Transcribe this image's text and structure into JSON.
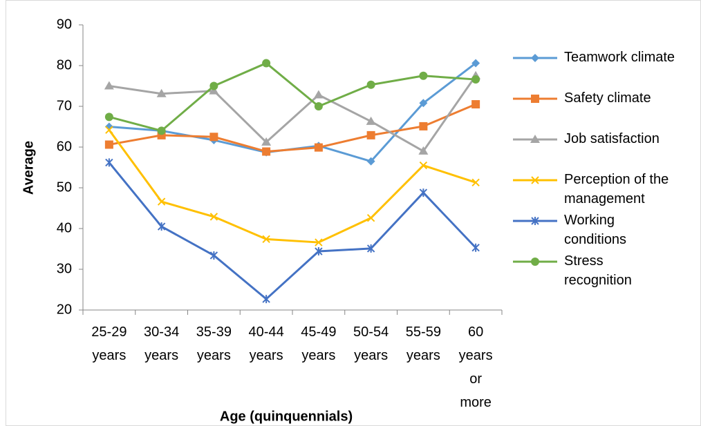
{
  "chart_data": {
    "type": "line",
    "x_label": "Age (quinquennials)",
    "y_label": "Average",
    "categories": [
      "25-29 years",
      "30-34 years",
      "35-39 years",
      "40-44 years",
      "45-49 years",
      "50-54 years",
      "55-59 years",
      "60 years or more"
    ],
    "ylim": [
      20,
      90
    ],
    "yticks": [
      20,
      30,
      40,
      50,
      60,
      70,
      80,
      90
    ],
    "grid": false,
    "legend": "right",
    "series": [
      {
        "name": "Teamwork climate",
        "color": "#5b9bd5",
        "marker": "diamond",
        "values": [
          65,
          64,
          61.7,
          58.7,
          60.3,
          56.5,
          70.8,
          80.6
        ]
      },
      {
        "name": "Safety climate",
        "color": "#ed7d31",
        "marker": "square",
        "values": [
          60.6,
          62.9,
          62.5,
          58.9,
          59.9,
          62.9,
          65.1,
          70.5
        ]
      },
      {
        "name": "Job satisfaction",
        "color": "#a5a5a5",
        "marker": "triangle",
        "values": [
          75,
          73.1,
          73.8,
          61.2,
          72.8,
          66.3,
          59,
          77.5
        ]
      },
      {
        "name": "Perception of the management",
        "color": "#ffc000",
        "marker": "x",
        "values": [
          64.2,
          46.6,
          42.9,
          37.4,
          36.6,
          42.6,
          55.5,
          51.3
        ]
      },
      {
        "name": "Working conditions",
        "color": "#4472c4",
        "marker": "star",
        "values": [
          56.2,
          40.5,
          33.4,
          22.7,
          34.4,
          35.1,
          48.8,
          35.3
        ]
      },
      {
        "name": "Stress recognition",
        "color": "#70ad47",
        "marker": "circle",
        "values": [
          67.4,
          64,
          75,
          80.6,
          70,
          75.3,
          77.5,
          76.6
        ]
      }
    ]
  }
}
